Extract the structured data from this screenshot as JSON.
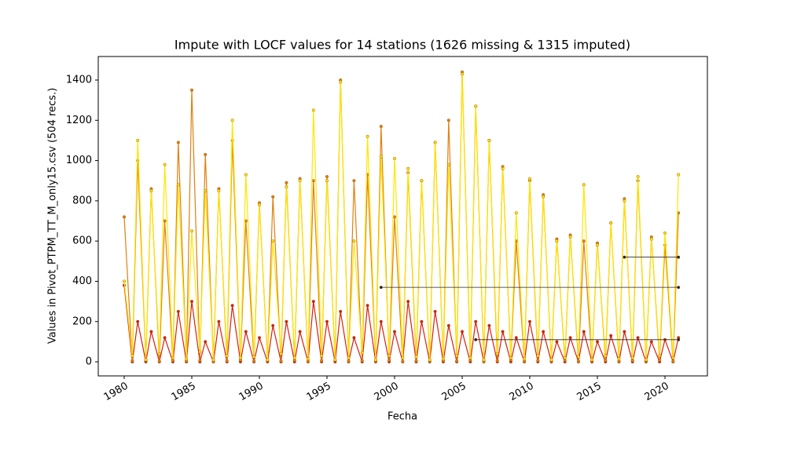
{
  "chart_data": {
    "type": "line",
    "title": "Impute with LOCF values for 14 stations (1626 missing & 1315 imputed)",
    "xlabel": "Fecha",
    "ylabel": "Values in Pivot_PTPM_TT_M_only15.csv (504 recs.)",
    "xlim": [
      1978.08,
      2023.14
    ],
    "ylim": [
      -70,
      1517
    ],
    "xticks": [
      1980,
      1985,
      1990,
      1995,
      2000,
      2005,
      2010,
      2015,
      2020
    ],
    "yticks": [
      0,
      200,
      400,
      600,
      800,
      1000,
      1200,
      1400
    ],
    "x": [
      1980,
      1980.6,
      1981,
      1981.6,
      1982,
      1982.6,
      1983,
      1983.6,
      1984,
      1984.6,
      1985,
      1985.6,
      1986,
      1986.6,
      1987,
      1987.6,
      1988,
      1988.6,
      1989,
      1989.6,
      1990,
      1990.6,
      1991,
      1991.6,
      1992,
      1992.6,
      1993,
      1993.6,
      1994,
      1994.6,
      1995,
      1995.6,
      1996,
      1996.6,
      1997,
      1997.6,
      1998,
      1998.6,
      1999,
      1999.6,
      2000,
      2000.6,
      2001,
      2001.6,
      2002,
      2002.6,
      2003,
      2003.6,
      2004,
      2004.6,
      2005,
      2005.6,
      2006,
      2006.6,
      2007,
      2007.6,
      2008,
      2008.6,
      2009,
      2009.6,
      2010,
      2010.6,
      2011,
      2011.6,
      2012,
      2012.6,
      2013,
      2013.6,
      2014,
      2014.6,
      2015,
      2015.6,
      2016,
      2016.6,
      2017,
      2017.6,
      2018,
      2018.6,
      2019,
      2019.6,
      2020,
      2020.6,
      2021
    ],
    "series": [
      {
        "color": "#d92010",
        "values": [
          380,
          0,
          200,
          0,
          150,
          0,
          120,
          0,
          250,
          0,
          300,
          0,
          100,
          0,
          200,
          0,
          280,
          0,
          150,
          0,
          120,
          0,
          180,
          0,
          200,
          0,
          150,
          0,
          300,
          0,
          200,
          0,
          250,
          0,
          120,
          0,
          280,
          0,
          200,
          0,
          150,
          0,
          300,
          0,
          200,
          0,
          250,
          0,
          180,
          0,
          150,
          0,
          200,
          0,
          180,
          0,
          150,
          0,
          120,
          0,
          200,
          0,
          150,
          0,
          100,
          0,
          120,
          0,
          150,
          0,
          100,
          0,
          130,
          0,
          150,
          0,
          120,
          0,
          100,
          0,
          110,
          0,
          120
        ]
      },
      {
        "color": "#e08010",
        "values": [
          720,
          5,
          1000,
          8,
          860,
          3,
          700,
          6,
          1090,
          4,
          1350,
          7,
          1030,
          2,
          860,
          5,
          1100,
          9,
          700,
          3,
          790,
          6,
          820,
          4,
          890,
          8,
          910,
          2,
          900,
          5,
          920,
          7,
          1400,
          3,
          900,
          6,
          930,
          4,
          1170,
          8,
          720,
          2,
          940,
          5,
          900,
          3,
          1090,
          6,
          1200,
          4,
          1440,
          7,
          1270,
          2,
          1100,
          5,
          970,
          9,
          600,
          3,
          900,
          6,
          830,
          4,
          610,
          8,
          630,
          2,
          600,
          5,
          590,
          7,
          690,
          3,
          810,
          6,
          900,
          4,
          620,
          8,
          580,
          2,
          740
        ]
      },
      {
        "color": "#ffe600",
        "values": [
          400,
          30,
          1100,
          10,
          850,
          40,
          980,
          20,
          880,
          15,
          650,
          50,
          850,
          10,
          850,
          30,
          1200,
          20,
          930,
          25,
          780,
          10,
          600,
          40,
          870,
          20,
          900,
          15,
          1250,
          30,
          900,
          10,
          1390,
          20,
          600,
          45,
          1120,
          10,
          1020,
          30,
          1010,
          20,
          960,
          25,
          900,
          10,
          1090,
          15,
          980,
          30,
          1430,
          20,
          1270,
          10,
          1100,
          40,
          960,
          20,
          740,
          15,
          910,
          30,
          820,
          10,
          600,
          20,
          620,
          25,
          880,
          10,
          580,
          30,
          690,
          15,
          800,
          20,
          920,
          10,
          610,
          30,
          640,
          20,
          930
        ]
      },
      {
        "color": "#222222",
        "x": [
          1999,
          2021
        ],
        "values": [
          370,
          370
        ]
      },
      {
        "color": "#222222",
        "x": [
          2017,
          2021
        ],
        "values": [
          520,
          520
        ]
      },
      {
        "color": "#222222",
        "x": [
          2006,
          2021
        ],
        "values": [
          110,
          110
        ]
      }
    ]
  }
}
